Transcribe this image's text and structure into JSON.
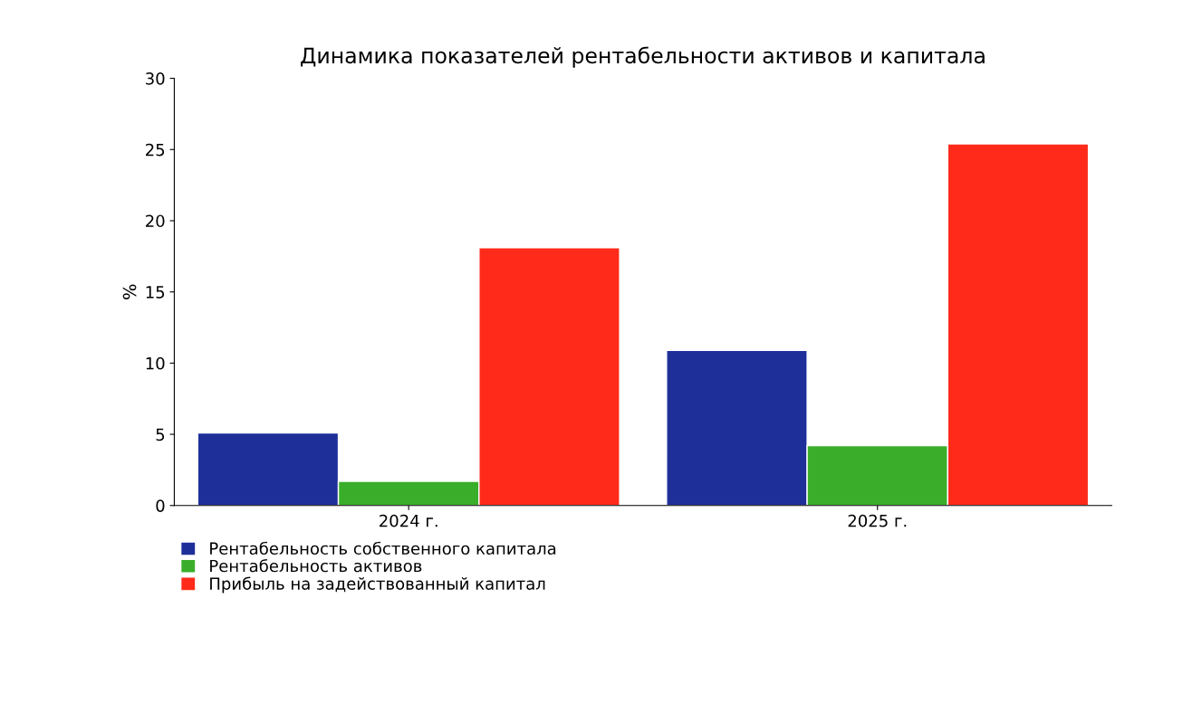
{
  "chart_data": {
    "type": "bar",
    "title": "Динамика показателей рентабельности активов и капитала",
    "ylabel": "%",
    "categories": [
      "2024 г.",
      "2025 г."
    ],
    "series": [
      {
        "name": "Рентабельность собственного капитала",
        "color": "#1f2f9a",
        "values": [
          5.1,
          10.9
        ]
      },
      {
        "name": "Рентабельность активов",
        "color": "#3aae2a",
        "values": [
          1.7,
          4.2
        ]
      },
      {
        "name": "Прибыль на задействованный капитал",
        "color": "#ff2a1a",
        "values": [
          18.1,
          25.4
        ]
      }
    ],
    "ylim": [
      0,
      30
    ],
    "yticks": [
      0,
      5,
      10,
      15,
      20,
      25,
      30
    ],
    "grid": false,
    "legend": "bottom left"
  }
}
